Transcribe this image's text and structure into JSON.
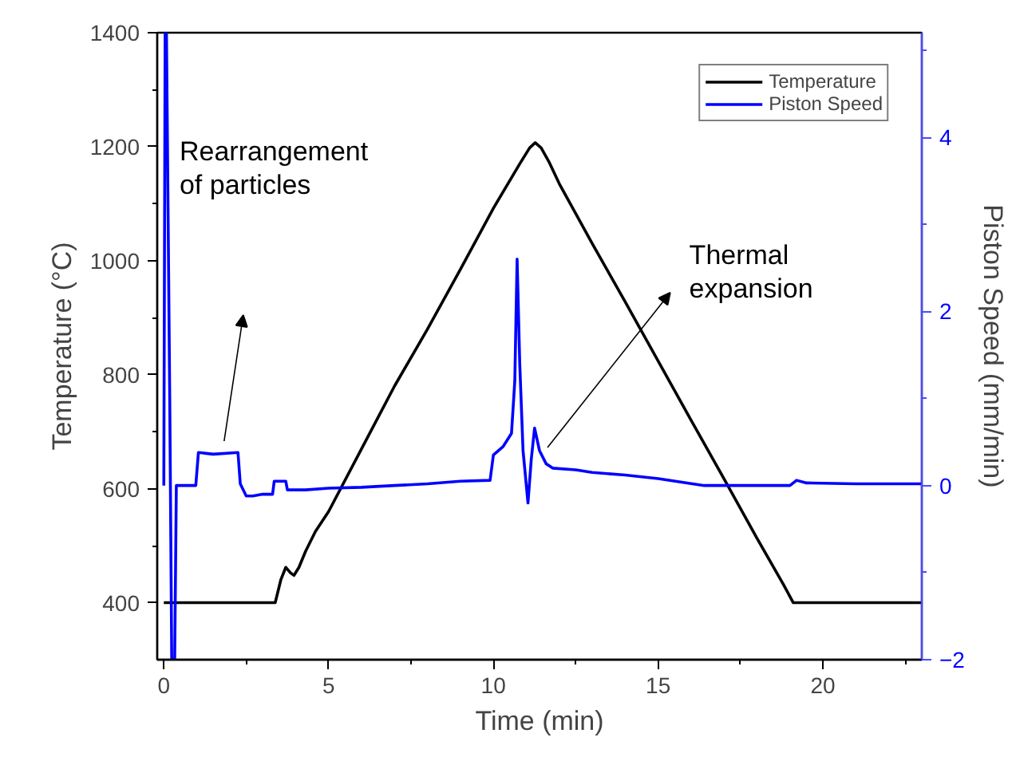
{
  "chart_data": {
    "type": "line",
    "xlabel": "Time (min)",
    "ylabel": "Temperature (°C)",
    "y2label": "Piston Speed (mm/min)",
    "xlim": [
      -0.2,
      23
    ],
    "xticks": [
      0,
      5,
      10,
      15,
      20
    ],
    "ylim": [
      300,
      1400
    ],
    "yticks": [
      400,
      600,
      800,
      1000,
      1200,
      1400
    ],
    "y2lim": [
      -2,
      5.2
    ],
    "y2ticks": [
      -2,
      0,
      2,
      4
    ],
    "grid": false,
    "legend": "top right",
    "marker": "none",
    "line_style": "solid",
    "series": [
      {
        "name": "Temperature",
        "color": "#000000",
        "x": [
          0,
          3.38,
          3.55,
          3.7,
          3.85,
          3.95,
          4.1,
          4.3,
          4.6,
          5,
          6,
          7,
          8,
          9,
          10,
          10.8,
          11.1,
          11.27,
          11.45,
          11.7,
          12,
          13,
          14,
          15,
          16,
          17,
          18,
          18.8,
          19.1,
          23
        ],
        "values": [
          400,
          400,
          440,
          462,
          452,
          448,
          462,
          490,
          525,
          560,
          670,
          780,
          880,
          985,
          1092,
          1170,
          1198,
          1207,
          1198,
          1172,
          1135,
          1030,
          928,
          824,
          720,
          617,
          513,
          432,
          400,
          400
        ]
      },
      {
        "name": "Piston Speed",
        "color": "#0000ff",
        "axis": "y2",
        "x": [
          0,
          0.04,
          0.08,
          0.18,
          0.24,
          0.27,
          0.33,
          0.38,
          0.5,
          0.97,
          1.05,
          1.5,
          2.25,
          2.32,
          2.5,
          2.7,
          3.0,
          3.3,
          3.35,
          3.7,
          3.75,
          4.3,
          5,
          6,
          7,
          8,
          9,
          9.9,
          10.0,
          10.3,
          10.55,
          10.65,
          10.72,
          10.8,
          10.9,
          11.05,
          11.15,
          11.25,
          11.4,
          11.6,
          11.8,
          12.5,
          13,
          14,
          15,
          16.4,
          17,
          18,
          19,
          19.2,
          19.5,
          21,
          23
        ],
        "values": [
          0,
          5.2,
          5.2,
          1.0,
          -2,
          -2,
          -2,
          0,
          0,
          0,
          0.38,
          0.36,
          0.38,
          0.02,
          -0.12,
          -0.12,
          -0.1,
          -0.1,
          0.05,
          0.05,
          -0.05,
          -0.05,
          -0.03,
          -0.02,
          0,
          0.02,
          0.05,
          0.06,
          0.35,
          0.45,
          0.6,
          1.2,
          2.6,
          1.4,
          0.4,
          -0.2,
          0.3,
          0.66,
          0.4,
          0.25,
          0.2,
          0.18,
          0.15,
          0.12,
          0.08,
          0.0,
          0.0,
          0.0,
          0.0,
          0.06,
          0.03,
          0.02,
          0.02
        ]
      }
    ],
    "annotations": [
      "Rearrangement\nof particles",
      "Thermal\nexpansion"
    ]
  }
}
